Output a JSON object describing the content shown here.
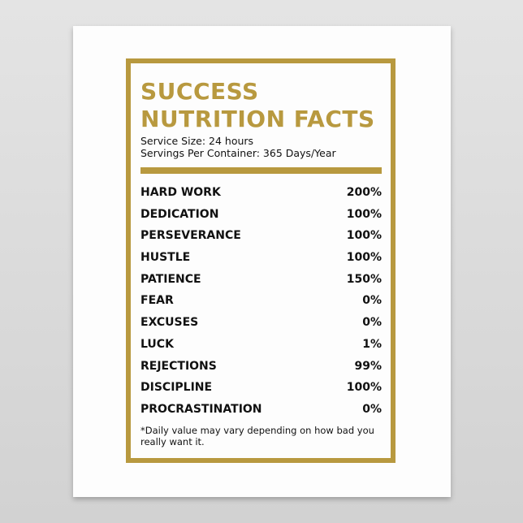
{
  "title": {
    "line1": "SUCCESS",
    "line2": "NUTRITION FACTS"
  },
  "serving_size": "Service Size: 24 hours",
  "servings_per_container": "Servings Per Container: 365 Days/Year",
  "rows": [
    {
      "label": "HARD WORK",
      "value": "200%"
    },
    {
      "label": "DEDICATION",
      "value": "100%"
    },
    {
      "label": "PERSEVERANCE",
      "value": "100%"
    },
    {
      "label": "HUSTLE",
      "value": "100%"
    },
    {
      "label": "PATIENCE",
      "value": "150%"
    },
    {
      "label": "FEAR",
      "value": "0%"
    },
    {
      "label": "EXCUSES",
      "value": "0%"
    },
    {
      "label": "LUCK",
      "value": "1%"
    },
    {
      "label": "REJECTIONS",
      "value": "99%"
    },
    {
      "label": "DISCIPLINE",
      "value": "100%"
    },
    {
      "label": "PROCRASTINATION",
      "value": "0%"
    }
  ],
  "footnote": "*Daily value may vary depending on how bad you really want it.",
  "colors": {
    "accent": "#b8993f",
    "text": "#111111"
  }
}
